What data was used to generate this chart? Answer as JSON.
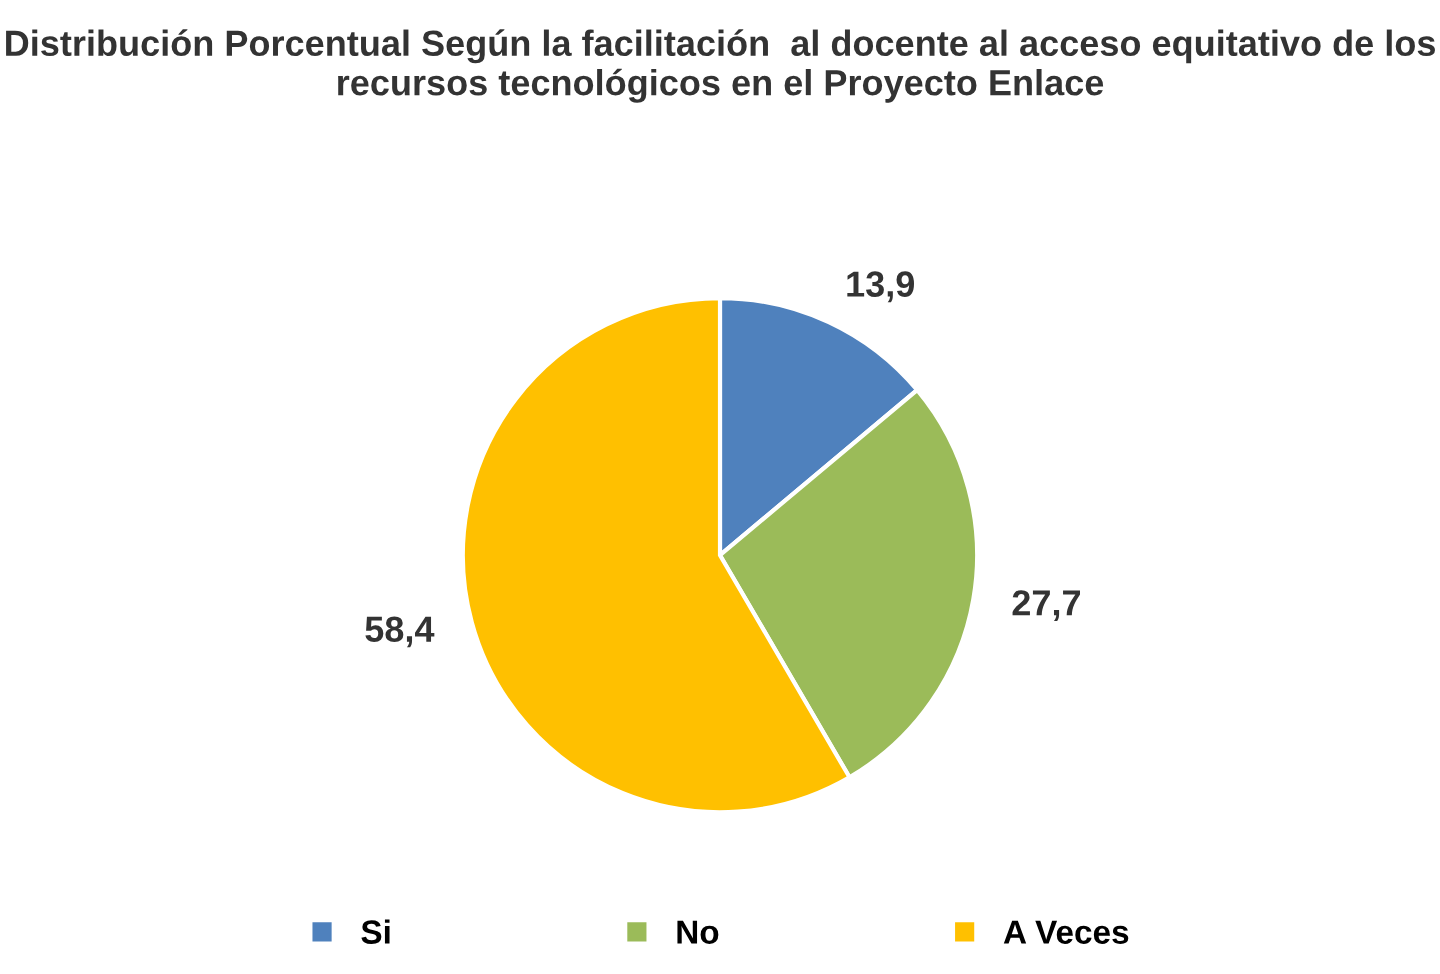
{
  "chart_data": {
    "type": "pie",
    "title": "Distribución Porcentual Según la facilitación  al docente al acceso equitativo de los recursos tecnológicos en el Proyecto Enlace",
    "categories": [
      "Si",
      "No",
      "A Veces"
    ],
    "values": [
      13.9,
      27.7,
      58.4
    ],
    "value_labels": [
      "13,9",
      "27,7",
      "58,4"
    ],
    "colors": [
      "#4f81bd",
      "#9bbb59",
      "#ffc000"
    ],
    "legend": "bottom"
  }
}
